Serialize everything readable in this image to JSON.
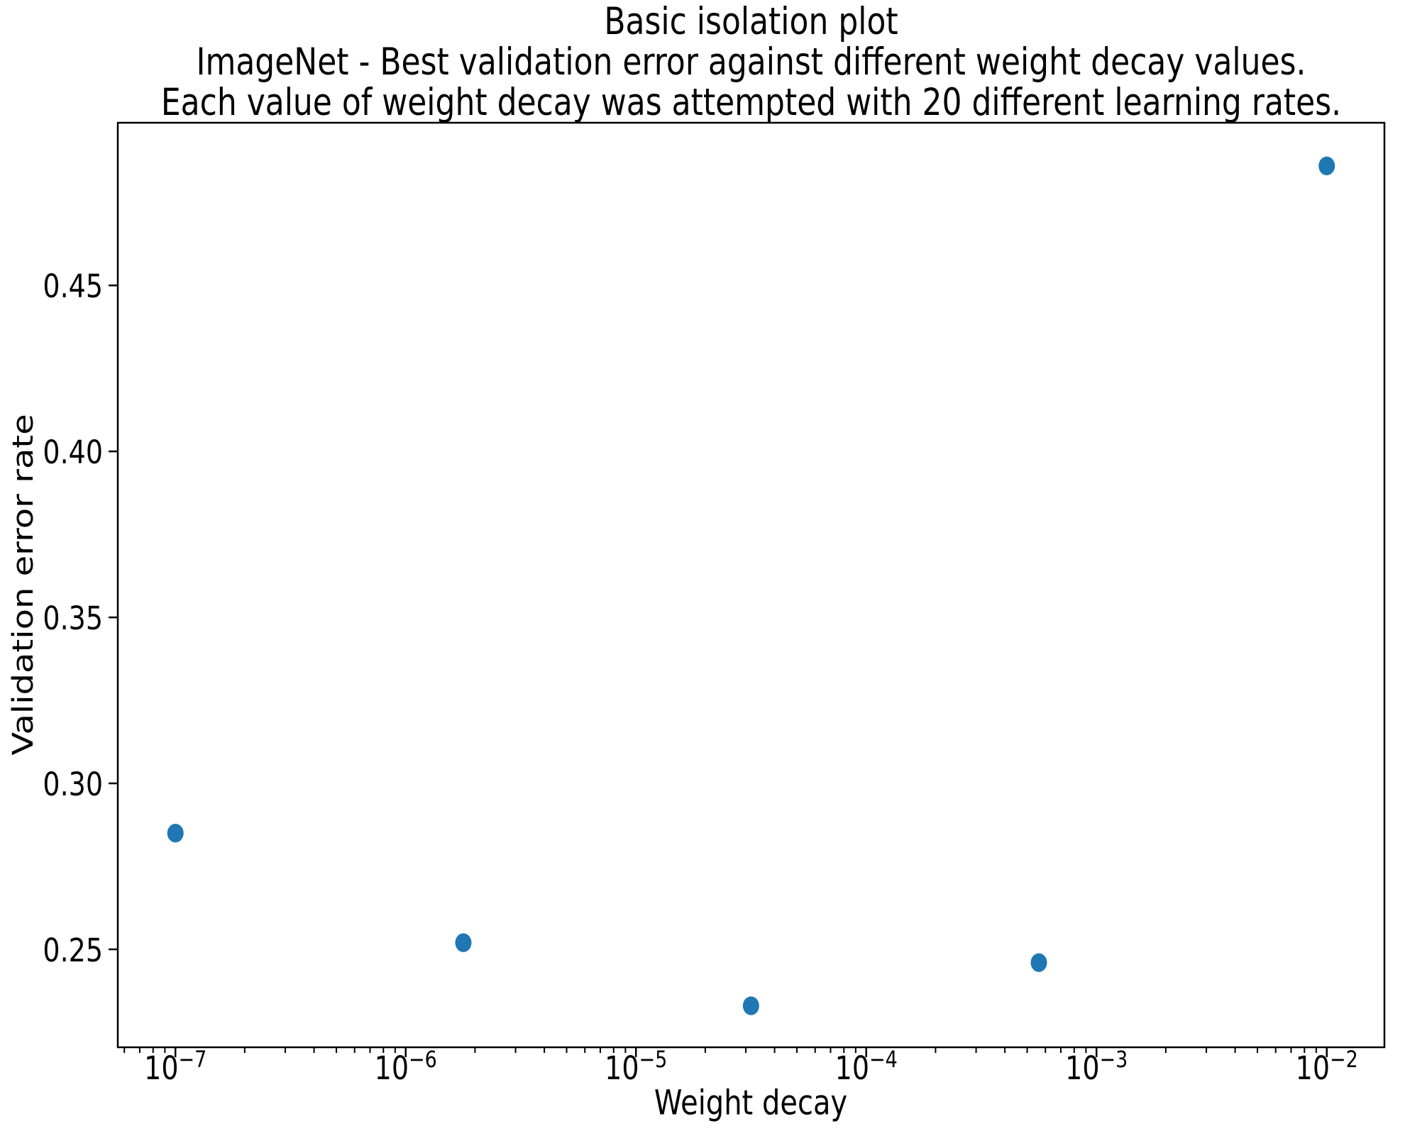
{
  "figure": {
    "title_lines": [
      "Basic isolation plot",
      "ImageNet - Best validation error against different weight decay values.",
      "Each value of weight decay was attempted with 20 different learning rates."
    ],
    "xlabel": "Weight decay",
    "ylabel": "Validation error rate"
  },
  "chart_data": {
    "type": "scatter",
    "title": "Basic isolation plot\nImageNet - Best validation error against different weight decay values.\nEach value of weight decay was attempted with 20 different learning rates.",
    "xlabel": "Weight decay",
    "ylabel": "Validation error rate",
    "x_scale": "log",
    "y_scale": "linear",
    "points": [
      {
        "x": 1e-07,
        "y": 0.285
      },
      {
        "x": 1.78e-06,
        "y": 0.252
      },
      {
        "x": 3.16e-05,
        "y": 0.233
      },
      {
        "x": 0.000562,
        "y": 0.246
      },
      {
        "x": 0.01,
        "y": 0.486
      }
    ],
    "xlim": [
      5.62e-08,
      0.0178
    ],
    "ylim": [
      0.2205,
      0.499
    ],
    "x_tick_exponents": [
      -7,
      -6,
      -5,
      -4,
      -3,
      -2
    ],
    "y_ticks": [
      0.25,
      0.3,
      0.35,
      0.4,
      0.45
    ],
    "y_tick_labels": [
      "0.25",
      "0.30",
      "0.35",
      "0.40",
      "0.45"
    ],
    "grid": false,
    "legend": null,
    "marker_color": "#1f77b4",
    "marker_shape": "circle",
    "axis_color": "#000000"
  }
}
